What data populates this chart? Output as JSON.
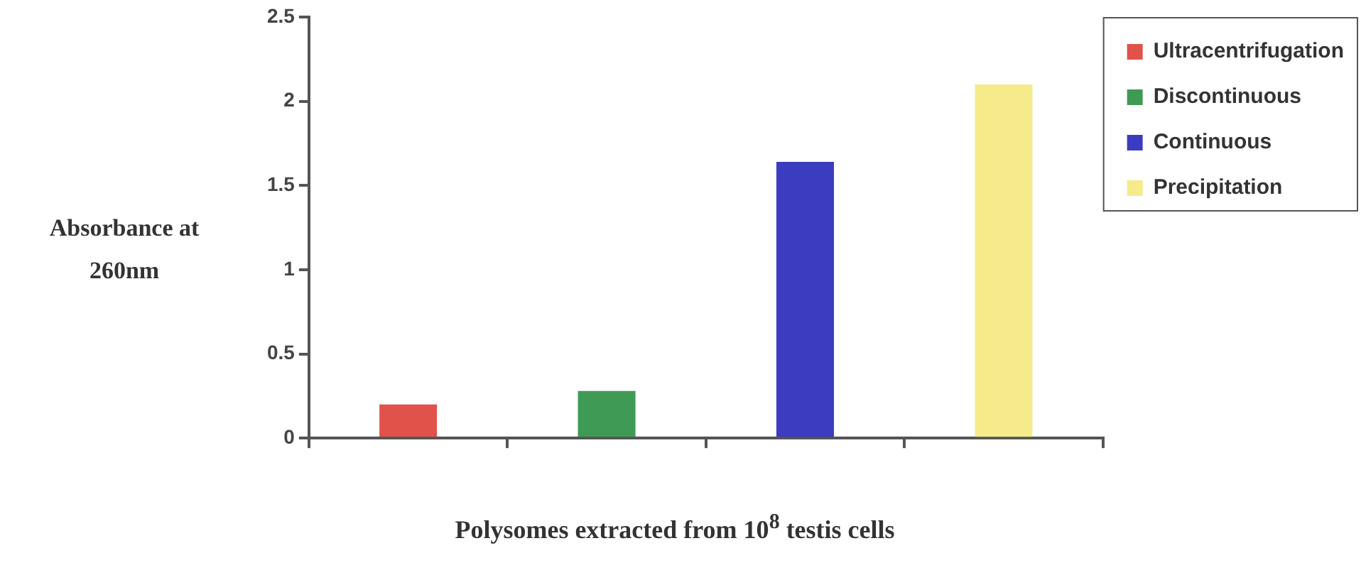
{
  "chart_data": {
    "type": "bar",
    "xlabel": "Polysomes extracted from 10$^{8}$ testis cells",
    "ylabel": "Absorbance at 260nm",
    "categories": [
      null,
      null,
      null,
      null
    ],
    "series": [
      {
        "name": "Ultracentrifugation",
        "color": "#e0524a",
        "values": [
          0.2,
          null,
          null,
          null
        ]
      },
      {
        "name": "Discontinuous",
        "color": "#3f9a55",
        "values": [
          null,
          0.28,
          null,
          null
        ]
      },
      {
        "name": "Continuous",
        "color": "#3c3cc0",
        "values": [
          null,
          null,
          1.64,
          null
        ]
      },
      {
        "name": "Precipitation",
        "color": "#f5eb8a",
        "values": [
          null,
          null,
          null,
          2.1
        ]
      }
    ],
    "ylim": [
      0,
      2.5
    ],
    "yticks": [
      0,
      0.5,
      1,
      1.5,
      2,
      2.5
    ],
    "grid": false,
    "legend": "top right"
  }
}
